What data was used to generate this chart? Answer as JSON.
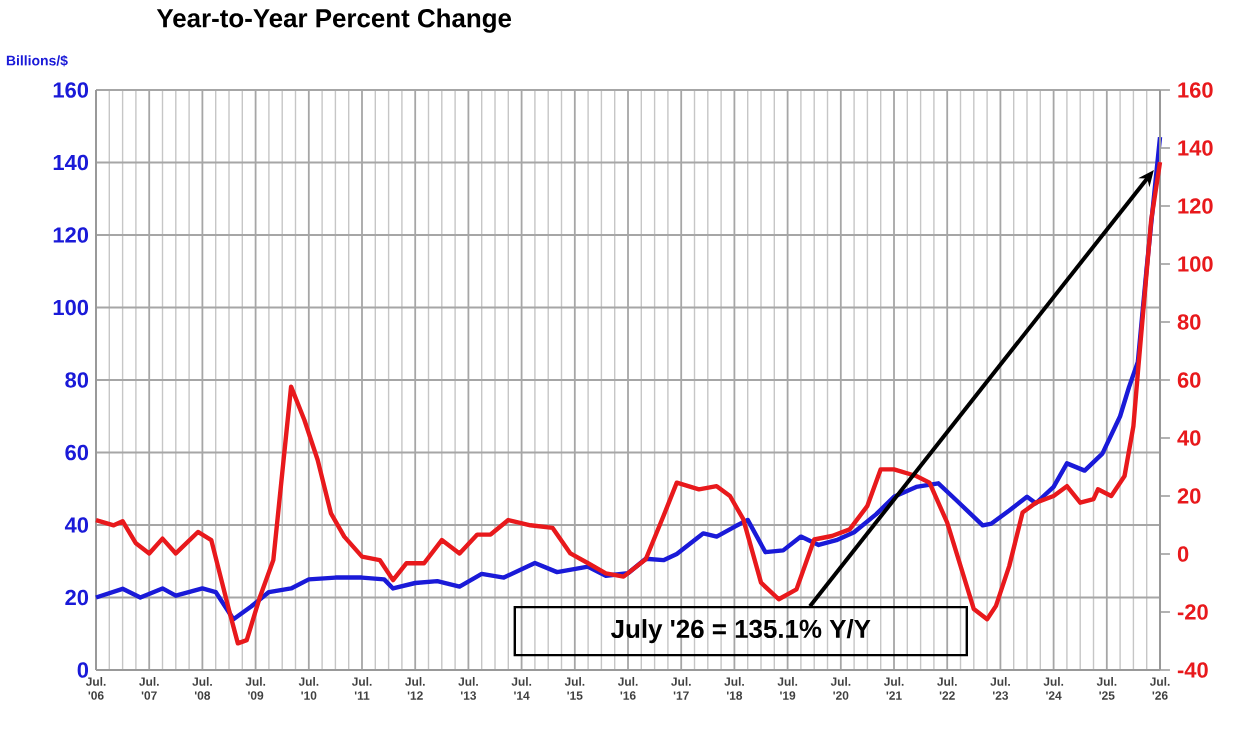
{
  "chart_data": {
    "type": "line",
    "title": "Year-to-Year Percent Change",
    "ylabel": "Billions/$",
    "xlim": [
      "2006-07",
      "2026-07"
    ],
    "xticks": [
      {
        "value": "2006-07",
        "label": "Jul. '06"
      },
      {
        "value": "2007-07",
        "label": "Jul. '07"
      },
      {
        "value": "2008-07",
        "label": "Jul. '08"
      },
      {
        "value": "2009-07",
        "label": "Jul. '09"
      },
      {
        "value": "2010-07",
        "label": "Jul. '10"
      },
      {
        "value": "2011-07",
        "label": "Jul. '11"
      },
      {
        "value": "2012-07",
        "label": "Jul. '12"
      },
      {
        "value": "2013-07",
        "label": "Jul. '13"
      },
      {
        "value": "2014-07",
        "label": "Jul. '14"
      },
      {
        "value": "2015-07",
        "label": "Jul. '15"
      },
      {
        "value": "2016-07",
        "label": "Jul. '16"
      },
      {
        "value": "2017-07",
        "label": "Jul. '17"
      },
      {
        "value": "2018-07",
        "label": "Jul. '18"
      },
      {
        "value": "2019-07",
        "label": "Jul. '19"
      },
      {
        "value": "2020-07",
        "label": "Jul. '20"
      },
      {
        "value": "2021-07",
        "label": "Jul. '21"
      },
      {
        "value": "2022-07",
        "label": "Jul. '22"
      },
      {
        "value": "2023-07",
        "label": "Jul. '23"
      },
      {
        "value": "2024-07",
        "label": "Jul. '24"
      },
      {
        "value": "2025-07",
        "label": "Jul. '25"
      },
      {
        "value": "2026-07",
        "label": "Jul. '26"
      }
    ],
    "ylim": [
      0,
      160
    ],
    "yticks": [
      0,
      20,
      40,
      60,
      80,
      100,
      120,
      140,
      160
    ],
    "y2lim": [
      -40,
      160
    ],
    "y2ticks": [
      -40,
      -20,
      0,
      20,
      40,
      60,
      80,
      100,
      120,
      140,
      160
    ],
    "grid": true,
    "series": [
      {
        "color": "#1a1ad8",
        "x": [
          "2006-07",
          "2007-01",
          "2007-05",
          "2007-10",
          "2008-01",
          "2008-07",
          "2008-10",
          "2009-02",
          "2009-06",
          "2009-10",
          "2010-03",
          "2010-07",
          "2011-01",
          "2011-07",
          "2011-12",
          "2012-02",
          "2012-07",
          "2012-12",
          "2013-05",
          "2013-10",
          "2014-03",
          "2014-10",
          "2015-03",
          "2015-10",
          "2016-02",
          "2016-07",
          "2016-11",
          "2017-03",
          "2017-06",
          "2017-12",
          "2018-03",
          "2018-07",
          "2018-10",
          "2019-02",
          "2019-06",
          "2019-10",
          "2020-02",
          "2020-06",
          "2020-10",
          "2021-03",
          "2021-07",
          "2021-12",
          "2022-05",
          "2022-09",
          "2023-03",
          "2023-05",
          "2023-09",
          "2024-01",
          "2024-03",
          "2024-07",
          "2024-10",
          "2025-02",
          "2025-06",
          "2025-10",
          "2025-12",
          "2026-02",
          "2026-04",
          "2026-07"
        ],
        "values": [
          20,
          22.4,
          20,
          22.5,
          20.5,
          22.5,
          21.5,
          14,
          17.5,
          21.5,
          22.5,
          25,
          25.5,
          25.5,
          25,
          22.5,
          24,
          24.5,
          23,
          26.5,
          25.5,
          29.5,
          27,
          28.5,
          26,
          26.7,
          30.7,
          30.3,
          32,
          37.7,
          36.8,
          39.5,
          41.4,
          32.5,
          33,
          36.8,
          34.5,
          35.8,
          38,
          43,
          47.8,
          50.5,
          51.5,
          46.9,
          39.9,
          40.4,
          44,
          47.8,
          46,
          50.5,
          57,
          55,
          59.7,
          70,
          78,
          85,
          111,
          147
        ]
      },
      {
        "color": "#e8191c",
        "axis": "y2",
        "x": [
          "2006-07",
          "2006-11",
          "2007-01",
          "2007-04",
          "2007-07",
          "2007-10",
          "2008-01",
          "2008-06",
          "2008-09",
          "2009-01",
          "2009-03",
          "2009-05",
          "2009-08",
          "2009-11",
          "2010-03",
          "2010-06",
          "2010-09",
          "2010-12",
          "2011-03",
          "2011-07",
          "2011-11",
          "2012-02",
          "2012-05",
          "2012-09",
          "2013-01",
          "2013-05",
          "2013-09",
          "2013-12",
          "2014-04",
          "2014-09",
          "2015-02",
          "2015-06",
          "2015-10",
          "2016-02",
          "2016-06",
          "2016-11",
          "2017-03",
          "2017-06",
          "2017-11",
          "2018-03",
          "2018-06",
          "2018-09",
          "2019-01",
          "2019-05",
          "2019-09",
          "2020-01",
          "2020-05",
          "2020-09",
          "2021-01",
          "2021-04",
          "2021-07",
          "2021-12",
          "2022-03",
          "2022-07",
          "2022-10",
          "2023-01",
          "2023-04",
          "2023-06",
          "2023-09",
          "2023-12",
          "2024-03",
          "2024-07",
          "2024-10",
          "2025-01",
          "2025-04",
          "2025-05",
          "2025-08",
          "2025-11",
          "2026-01",
          "2026-02",
          "2026-05",
          "2026-07"
        ],
        "values": [
          11.7,
          9.9,
          11.3,
          3.7,
          0.2,
          5.3,
          0.2,
          7.6,
          4.8,
          -19.3,
          -30.8,
          -29.7,
          -14.7,
          -2.1,
          57.7,
          46.2,
          32.4,
          14,
          6,
          -0.9,
          -2.1,
          -9,
          -3.2,
          -3.2,
          4.8,
          0.2,
          6.7,
          6.7,
          11.7,
          9.9,
          9,
          0.2,
          -3.2,
          -6.7,
          -7.8,
          -1.8,
          13.1,
          24.6,
          22.3,
          23.4,
          20,
          12,
          -9.9,
          -15.6,
          -12.2,
          5,
          6.2,
          8.5,
          16.6,
          29.2,
          29.2,
          26.9,
          24.6,
          10.8,
          -4.1,
          -19,
          -22.5,
          -17.9,
          -4.1,
          14.3,
          17.7,
          20,
          23.4,
          17.7,
          18.9,
          22.3,
          20,
          26.9,
          44.1,
          62.5,
          115,
          135.1
        ]
      }
    ],
    "annotations": [
      "July '26 = 135.1% Y/Y"
    ]
  }
}
